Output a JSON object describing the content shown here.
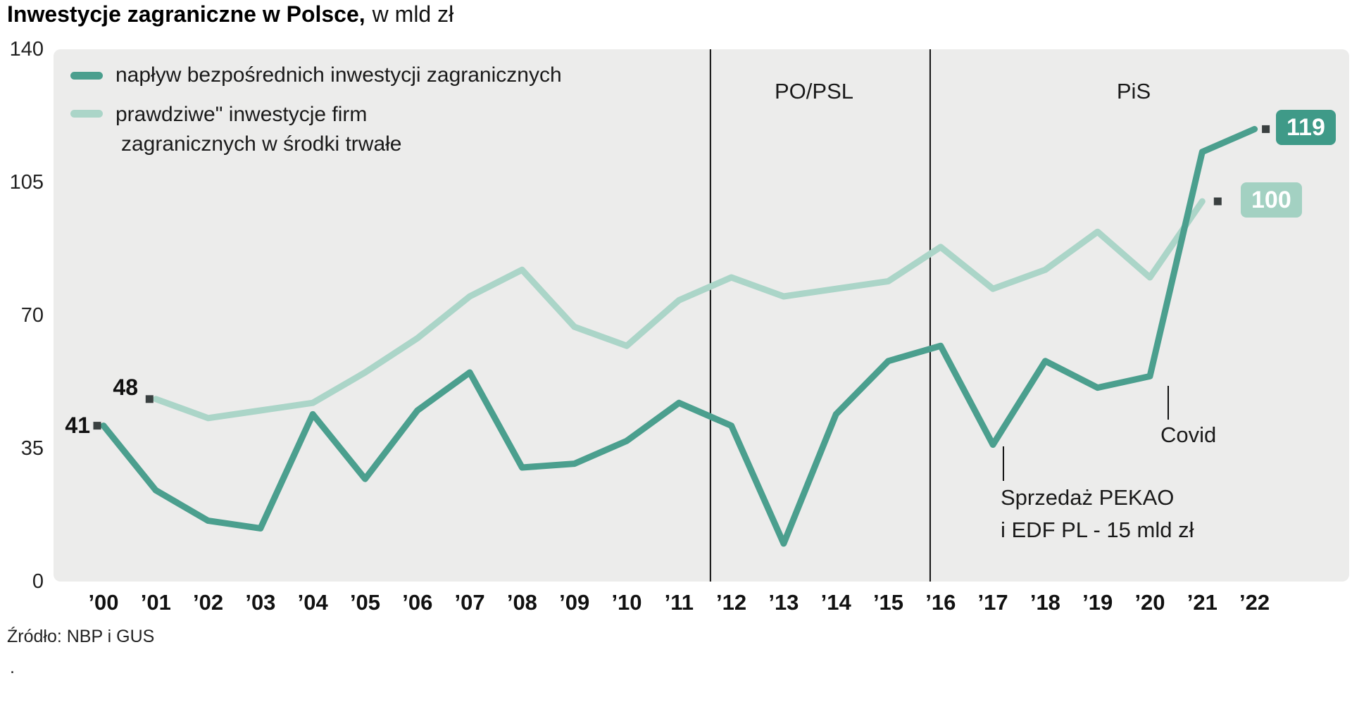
{
  "title": {
    "main": "Inwestycje zagraniczne w Polsce,",
    "unit": "w mld zł"
  },
  "source": "Źródło: NBP i GUS",
  "footnote_dot": ".",
  "colors": {
    "series_inflow": "#4b9f8e",
    "series_fixed": "#abd5c8",
    "badge_inflow": "#3f9a88",
    "badge_fixed": "#a3d1c2",
    "plot_bg": "#ececeb",
    "marker": "#3a4040",
    "divider": "#111111"
  },
  "legend": {
    "inflow": "napływ bezpośrednich inwestycji zagranicznych",
    "fixed_line1": "prawdziwe\" inwestycje firm",
    "fixed_line2": "zagranicznych w środki trwałe"
  },
  "periods": {
    "po_psl": "PO/PSL",
    "pis": "PiS"
  },
  "annotations": {
    "covid": "Covid",
    "pekao_line1": "Sprzedaż PEKAO",
    "pekao_line2": "i EDF PL - 15 mld zł",
    "start_inflow": "41",
    "start_fixed": "48",
    "end_inflow": "119",
    "end_fixed": "100"
  },
  "chart_data": {
    "type": "line",
    "title": "Inwestycje zagraniczne w Polsce, w mld zł",
    "xlabel": "",
    "ylabel": "mld zł",
    "ylim": [
      0,
      140
    ],
    "y_ticks": [
      0,
      35,
      70,
      105,
      140
    ],
    "grid": false,
    "legend_position": "top-left",
    "x_labels": [
      "’00",
      "’01",
      "’02",
      "’03",
      "’04",
      "’05",
      "’06",
      "’07",
      "’08",
      "’09",
      "’10",
      "’11",
      "’12",
      "’13",
      "’14",
      "’15",
      "’16",
      "’17",
      "’18",
      "’19",
      "’20",
      "’21",
      "’22"
    ],
    "series": [
      {
        "name": "napływ bezpośrednich inwestycji zagranicznych",
        "start_year": 2000,
        "values": [
          41,
          24,
          16,
          14,
          44,
          27,
          45,
          55,
          30,
          31,
          37,
          47,
          41,
          10,
          44,
          58,
          62,
          36,
          58,
          51,
          54,
          113,
          119
        ]
      },
      {
        "name": "\"prawdziwe\" inwestycje firm zagranicznych w środki trwałe",
        "start_year": 2001,
        "values": [
          48,
          43,
          45,
          47,
          55,
          64,
          75,
          82,
          67,
          62,
          74,
          80,
          75,
          77,
          79,
          88,
          77,
          82,
          92,
          80,
          100
        ]
      }
    ],
    "callouts": [
      {
        "series": 0,
        "year": 2000,
        "value": 41
      },
      {
        "series": 1,
        "year": 2001,
        "value": 48
      },
      {
        "series": 0,
        "year": 2022,
        "value": 119
      },
      {
        "series": 1,
        "year": 2021,
        "value": 100
      }
    ],
    "period_lines": [
      {
        "x_year": 2011.6,
        "label": "PO/PSL"
      },
      {
        "x_year": 2015.8,
        "label": "PiS"
      }
    ],
    "annotations": [
      {
        "x_year": 2020.35,
        "label": "Covid"
      },
      {
        "x_year": 2017.2,
        "label": "Sprzedaż PEKAO i EDF PL - 15 mld zł"
      }
    ]
  }
}
